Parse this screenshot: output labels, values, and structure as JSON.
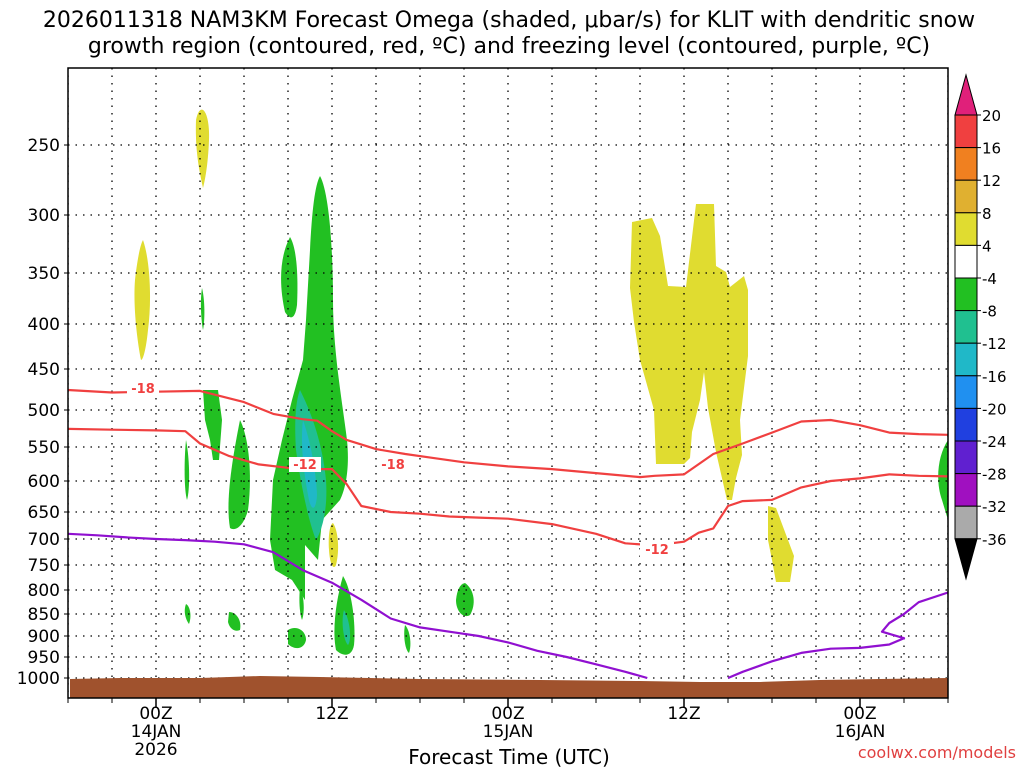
{
  "chart_data": {
    "type": "time-height cross section",
    "title_line1": "2026011318 NAM3KM Forecast Omega (shaded, μbar/s) for KLIT with dendritic snow",
    "title_line2": "growth region (contoured, red, ºC) and freezing level (contoured, purple, ºC)",
    "xlabel": "Forecast Time (UTC)",
    "x_ticks": [
      {
        "hour": 6,
        "label": [
          "00Z",
          "14JAN",
          "2026"
        ]
      },
      {
        "hour": 18,
        "label": [
          "12Z"
        ]
      },
      {
        "hour": 30,
        "label": [
          "00Z",
          "15JAN"
        ]
      },
      {
        "hour": 42,
        "label": [
          "12Z"
        ]
      },
      {
        "hour": 54,
        "label": [
          "00Z",
          "16JAN"
        ]
      }
    ],
    "x_range_hours": [
      0,
      60
    ],
    "y_ticks_hpa": [
      250,
      300,
      350,
      400,
      450,
      500,
      550,
      600,
      650,
      700,
      750,
      800,
      850,
      900,
      950,
      1000
    ],
    "y_range_hpa": [
      200,
      1040
    ],
    "y_scale": "pressure (reversed)",
    "grid": true,
    "colorbar": {
      "labels": [
        "20",
        "16",
        "12",
        "8",
        "4",
        "-4",
        "-8",
        "-12",
        "-16",
        "-20",
        "-24",
        "-28",
        "-32",
        "-36"
      ],
      "colors": [
        "#f04040",
        "#f08020",
        "#e0b030",
        "#e0dc30",
        "#ffffff",
        "#22c022",
        "#20c090",
        "#20b8c8",
        "#2090f0",
        "#2040e0",
        "#6020d0",
        "#a010c0",
        "#aaaaaa"
      ],
      "top_arrow_color": "#e0207a",
      "bottom_arrow_color": "#000000"
    },
    "contours": [
      {
        "name": "-18 ºC",
        "color": "#f04040",
        "label": "-18",
        "points": [
          [
            0,
            475
          ],
          [
            3,
            478
          ],
          [
            6,
            477
          ],
          [
            9,
            476
          ],
          [
            12,
            490
          ],
          [
            14,
            505
          ],
          [
            16,
            512
          ],
          [
            17,
            514
          ],
          [
            18,
            528
          ],
          [
            19,
            540
          ],
          [
            21,
            553
          ],
          [
            23,
            560
          ],
          [
            25,
            566
          ],
          [
            27,
            572
          ],
          [
            30,
            578
          ],
          [
            33,
            582
          ],
          [
            36,
            588
          ],
          [
            39,
            594
          ],
          [
            40,
            592
          ],
          [
            42,
            590
          ],
          [
            44,
            560
          ],
          [
            46,
            545
          ],
          [
            48,
            530
          ],
          [
            50,
            515
          ],
          [
            52,
            513
          ],
          [
            54,
            520
          ],
          [
            56,
            530
          ],
          [
            58,
            532
          ],
          [
            60,
            533
          ]
        ]
      },
      {
        "name": "-12 ºC",
        "color": "#f04040",
        "label": "-12",
        "points": [
          [
            0,
            525
          ],
          [
            3,
            526
          ],
          [
            6,
            527
          ],
          [
            8,
            528
          ],
          [
            9,
            545
          ],
          [
            11,
            563
          ],
          [
            13,
            575
          ],
          [
            15,
            580
          ],
          [
            16,
            582
          ],
          [
            18,
            582
          ],
          [
            19,
            605
          ],
          [
            20,
            640
          ],
          [
            22,
            650
          ],
          [
            24,
            653
          ],
          [
            26,
            658
          ],
          [
            28,
            660
          ],
          [
            30,
            662
          ],
          [
            33,
            672
          ],
          [
            36,
            690
          ],
          [
            38,
            708
          ],
          [
            40,
            712
          ],
          [
            42,
            705
          ],
          [
            43,
            688
          ],
          [
            44,
            680
          ],
          [
            45,
            640
          ],
          [
            46,
            632
          ],
          [
            48,
            630
          ],
          [
            50,
            610
          ],
          [
            52,
            600
          ],
          [
            54,
            596
          ],
          [
            56,
            590
          ],
          [
            58,
            592
          ],
          [
            60,
            593
          ]
        ]
      },
      {
        "name": "freezing level",
        "color": "#9010d0",
        "label": "",
        "points": [
          [
            0,
            690
          ],
          [
            2,
            693
          ],
          [
            4,
            697
          ],
          [
            6,
            700
          ],
          [
            8,
            702
          ],
          [
            10,
            705
          ],
          [
            12,
            710
          ],
          [
            14,
            725
          ],
          [
            16,
            760
          ],
          [
            18,
            785
          ],
          [
            20,
            820
          ],
          [
            22,
            860
          ],
          [
            24,
            880
          ],
          [
            26,
            890
          ],
          [
            28,
            900
          ],
          [
            30,
            915
          ],
          [
            32,
            935
          ],
          [
            34,
            950
          ],
          [
            36,
            967
          ],
          [
            38,
            985
          ],
          [
            39.5,
            1000
          ]
        ],
        "points2": [
          [
            45,
            1000
          ],
          [
            46,
            985
          ],
          [
            48,
            960
          ],
          [
            50,
            940
          ],
          [
            52,
            930
          ],
          [
            54,
            928
          ],
          [
            56,
            920
          ],
          [
            57,
            905
          ],
          [
            55.5,
            890
          ],
          [
            56,
            870
          ],
          [
            57,
            850
          ],
          [
            58,
            825
          ],
          [
            60,
            805
          ]
        ]
      }
    ]
  },
  "credit": "coolwx.com/models"
}
